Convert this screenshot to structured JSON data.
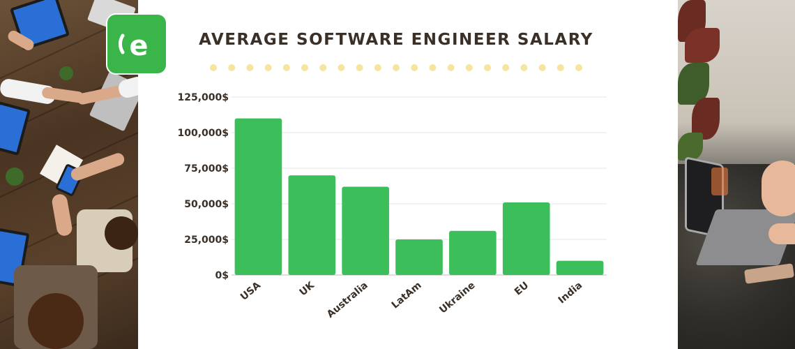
{
  "logo": {
    "letter": "e",
    "color": "#3ab54a"
  },
  "chart_data": {
    "type": "bar",
    "title": "AVERAGE SOFTWARE ENGINEER SALARY",
    "categories": [
      "USA",
      "UK",
      "Australia",
      "LatAm",
      "Ukraine",
      "EU",
      "India"
    ],
    "values": [
      110000,
      70000,
      62000,
      25000,
      31000,
      51000,
      10000
    ],
    "yticks": [
      "0$",
      "25,000$",
      "50,000$",
      "75,000$",
      "100,000$",
      "125,000$"
    ],
    "ylim": [
      0,
      125000
    ],
    "xlabel": "",
    "ylabel": "",
    "grid": true,
    "legend": "none",
    "bar_color": "#3cbf5a",
    "title_color": "#3a3027",
    "dot_color": "#f6e59e",
    "dot_count": 21
  }
}
